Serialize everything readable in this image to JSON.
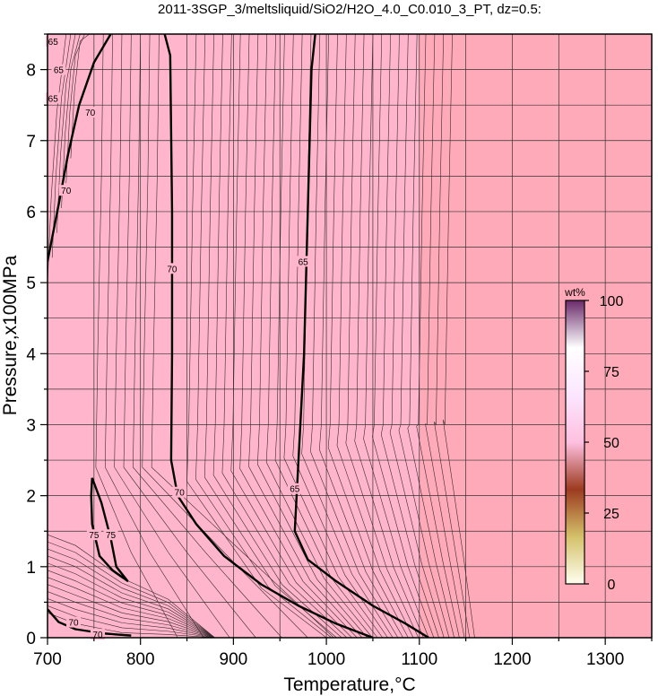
{
  "chart_data": {
    "type": "heatmap",
    "title": "2011-3SGP_3/meltsliquid/SiO2/H2O_4.0_C0.010_3_PT, dz=0.5:",
    "xlabel": "Temperature,°C",
    "ylabel": "Pressure,x100MPa",
    "xlim": [
      700,
      1350
    ],
    "ylim": [
      0,
      8.5
    ],
    "x_ticks": [
      700,
      800,
      900,
      1000,
      1100,
      1200,
      1300
    ],
    "y_ticks": [
      0,
      1,
      2,
      3,
      4,
      5,
      6,
      7,
      8
    ],
    "grid": true,
    "colorbar": {
      "unit": "wt%",
      "ticks": [
        0,
        25,
        50,
        75,
        100
      ],
      "range": [
        0,
        100
      ],
      "colors": [
        "#fffff0",
        "#d4c16a",
        "#9c3a1f",
        "#ffc0e0",
        "#fbe6ff",
        "#ffffff",
        "#6a2a6a"
      ]
    },
    "fill_colors": {
      "melt_region": "#ffb6cc",
      "high_T_region": "#ffaab8"
    },
    "contours": [
      {
        "level": "70",
        "points": [
          [
            700,
            5.3
          ],
          [
            712,
            6.1
          ],
          [
            722,
            6.8
          ],
          [
            734,
            7.5
          ],
          [
            750,
            8.1
          ],
          [
            768,
            8.5
          ]
        ]
      },
      {
        "level": "70",
        "points": [
          [
            826,
            8.5
          ],
          [
            832,
            8.2
          ],
          [
            834,
            6.0
          ],
          [
            834,
            4.0
          ],
          [
            833,
            2.5
          ],
          [
            840,
            2.0
          ],
          [
            860,
            1.6
          ],
          [
            890,
            1.15
          ],
          [
            930,
            0.75
          ],
          [
            970,
            0.45
          ],
          [
            1010,
            0.2
          ],
          [
            1050,
            0.0
          ]
        ]
      },
      {
        "level": "65",
        "points": [
          [
            988,
            8.5
          ],
          [
            984,
            8.0
          ],
          [
            980,
            6.0
          ],
          [
            976,
            4.0
          ],
          [
            970,
            2.5
          ],
          [
            966,
            1.5
          ],
          [
            980,
            1.1
          ],
          [
            1010,
            0.8
          ],
          [
            1050,
            0.45
          ],
          [
            1085,
            0.2
          ],
          [
            1110,
            0.0
          ]
        ]
      },
      {
        "level": "75",
        "points": [
          [
            748,
            2.25
          ],
          [
            747,
            2.0
          ],
          [
            748,
            1.6
          ],
          [
            756,
            1.15
          ],
          [
            770,
            0.95
          ],
          [
            786,
            0.8
          ],
          [
            774,
            1.0
          ],
          [
            768,
            1.4
          ],
          [
            758,
            1.9
          ],
          [
            748,
            2.25
          ]
        ]
      },
      {
        "level": "70",
        "points": [
          [
            700,
            0.4
          ],
          [
            712,
            0.22
          ],
          [
            730,
            0.12
          ],
          [
            760,
            0.06
          ],
          [
            790,
            0.03
          ]
        ]
      }
    ],
    "contour_labels": [
      {
        "text": "65",
        "x": 706,
        "y": 8.4
      },
      {
        "text": "65",
        "x": 712,
        "y": 8.0
      },
      {
        "text": "65",
        "x": 706,
        "y": 7.6
      },
      {
        "text": "70",
        "x": 746,
        "y": 7.4
      },
      {
        "text": "70",
        "x": 720,
        "y": 6.3
      },
      {
        "text": "70",
        "x": 834,
        "y": 5.2
      },
      {
        "text": "70",
        "x": 842,
        "y": 2.05
      },
      {
        "text": "65",
        "x": 975,
        "y": 5.3
      },
      {
        "text": "65",
        "x": 966,
        "y": 2.1
      },
      {
        "text": "75",
        "x": 750,
        "y": 1.45
      },
      {
        "text": "75",
        "x": 768,
        "y": 1.45
      },
      {
        "text": "70",
        "x": 728,
        "y": 0.22
      },
      {
        "text": "70",
        "x": 754,
        "y": 0.05
      }
    ]
  }
}
